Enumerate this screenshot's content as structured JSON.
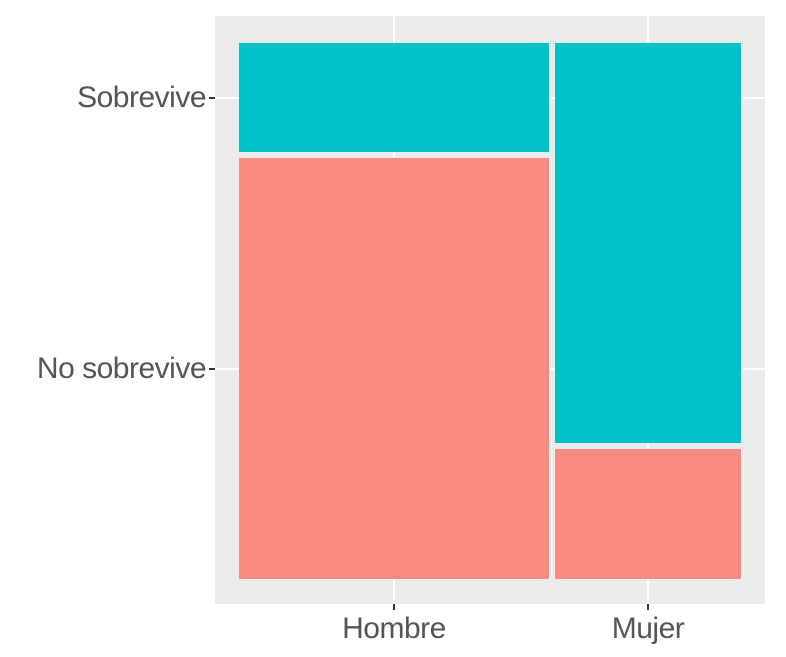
{
  "chart_data": {
    "type": "bar",
    "subtype": "mosaic",
    "title": "",
    "xlabel": "",
    "ylabel": "",
    "x_categories": [
      "Hombre",
      "Mujer"
    ],
    "y_categories": [
      "Sobrevive",
      "No sobrevive"
    ],
    "column_proportions": [
      0.625,
      0.375
    ],
    "cell_proportions": [
      {
        "x": "Hombre",
        "Sobrevive": 0.205,
        "No sobrevive": 0.795
      },
      {
        "x": "Mujer",
        "Sobrevive": 0.755,
        "No sobrevive": 0.245
      }
    ],
    "legend": "none",
    "grid": "on",
    "colors": {
      "Sobrevive": "#00C3C8",
      "No sobrevive": "#FB8A83"
    },
    "panel_background": "#EBEBEB",
    "gridline_color": "#FFFFFF",
    "axis_text_color": "#555555",
    "tick_color": "#333333",
    "page_background": "#FFFFFF"
  }
}
